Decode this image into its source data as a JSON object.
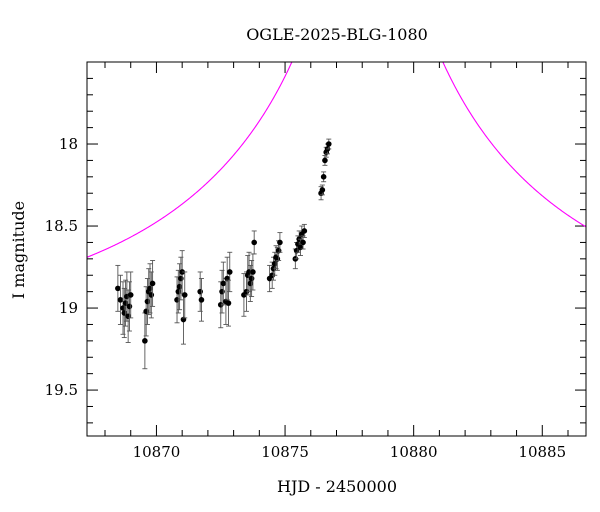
{
  "chart_data": {
    "type": "scatter",
    "title": "OGLE-2025-BLG-1080",
    "xlabel": "HJD - 2450000",
    "ylabel": "I magnitude",
    "xlim": [
      10867.3,
      10886.7
    ],
    "ylim": [
      19.78,
      17.5
    ],
    "y_inverted": true,
    "x_ticks": [
      10870,
      10875,
      10880,
      10885
    ],
    "x_tick_labels": [
      "10870",
      "10875",
      "10880",
      "10885"
    ],
    "y_ticks": [
      18,
      18.5,
      19,
      19.5
    ],
    "y_tick_labels": [
      "18",
      "18.5",
      "19",
      "19.5"
    ],
    "grid": false,
    "marker_color": "#000000",
    "model_color": "#ff00ff",
    "model": {
      "name": "",
      "type": "point-lens microlensing fit",
      "t0": 10878.2,
      "u0": 0.04,
      "tE": 13.0,
      "baseline_mag": 19.12
    },
    "series": [
      {
        "name": "",
        "x": [
          10868.5,
          10868.6,
          10868.7,
          10868.75,
          10868.8,
          10868.85,
          10868.9,
          10868.95,
          10869.0,
          10869.55,
          10869.6,
          10869.65,
          10869.7,
          10869.75,
          10869.8,
          10869.85,
          10870.8,
          10870.85,
          10870.9,
          10870.95,
          10871.0,
          10871.05,
          10871.1,
          10871.7,
          10871.75,
          10872.5,
          10872.55,
          10872.6,
          10872.7,
          10872.75,
          10872.8,
          10872.85,
          10873.4,
          10873.5,
          10873.55,
          10873.6,
          10873.65,
          10873.7,
          10873.75,
          10873.8,
          10874.4,
          10874.5,
          10874.55,
          10874.6,
          10874.65,
          10874.7,
          10874.75,
          10874.8,
          10875.4,
          10875.45,
          10875.5,
          10875.55,
          10875.6,
          10875.65,
          10875.7,
          10875.75,
          10876.4,
          10876.45,
          10876.5,
          10876.55,
          10876.6,
          10876.65,
          10876.7
        ],
        "y": [
          18.88,
          18.95,
          19.0,
          19.03,
          18.97,
          18.93,
          19.05,
          18.99,
          18.92,
          19.2,
          19.02,
          18.96,
          18.9,
          18.88,
          18.92,
          18.85,
          18.95,
          18.9,
          18.87,
          18.82,
          18.78,
          19.07,
          18.92,
          18.9,
          18.95,
          18.98,
          18.9,
          18.85,
          18.96,
          18.82,
          18.97,
          18.78,
          18.92,
          18.9,
          18.8,
          18.78,
          18.85,
          18.82,
          18.78,
          18.6,
          18.82,
          18.8,
          18.76,
          18.73,
          18.69,
          18.7,
          18.65,
          18.6,
          18.7,
          18.65,
          18.61,
          18.58,
          18.63,
          18.55,
          18.6,
          18.53,
          18.3,
          18.28,
          18.2,
          18.1,
          18.05,
          18.03,
          18.0
        ],
        "err": [
          0.14,
          0.15,
          0.16,
          0.15,
          0.14,
          0.15,
          0.16,
          0.15,
          0.14,
          0.17,
          0.15,
          0.14,
          0.14,
          0.15,
          0.14,
          0.14,
          0.14,
          0.13,
          0.14,
          0.13,
          0.13,
          0.15,
          0.14,
          0.12,
          0.13,
          0.14,
          0.13,
          0.13,
          0.14,
          0.13,
          0.14,
          0.12,
          0.13,
          0.12,
          0.12,
          0.12,
          0.11,
          0.11,
          0.11,
          0.07,
          0.08,
          0.08,
          0.07,
          0.07,
          0.07,
          0.07,
          0.06,
          0.06,
          0.06,
          0.05,
          0.05,
          0.05,
          0.05,
          0.05,
          0.04,
          0.04,
          0.04,
          0.03,
          0.03,
          0.03,
          0.03,
          0.03,
          0.03
        ]
      }
    ]
  }
}
